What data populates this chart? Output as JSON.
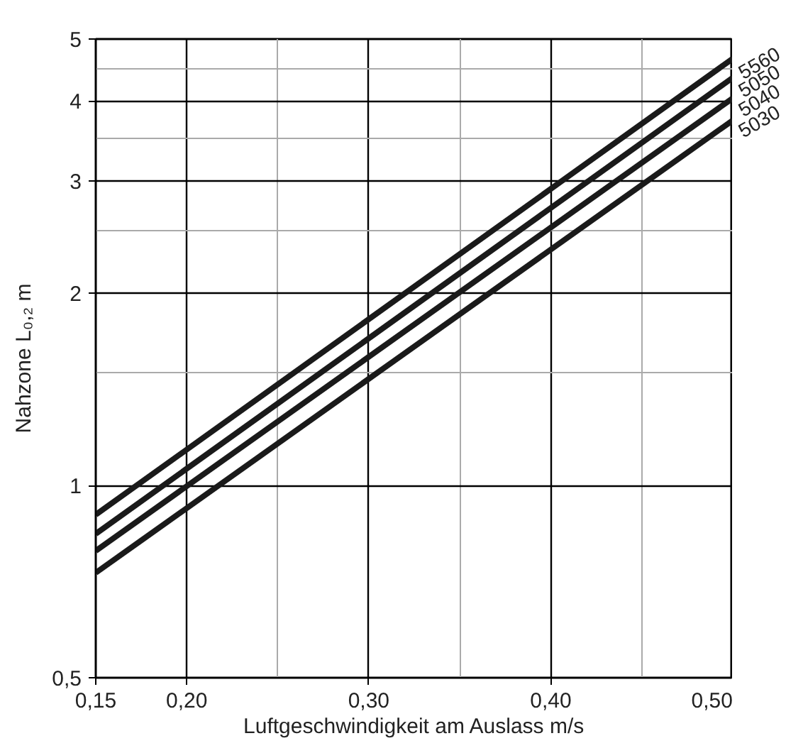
{
  "chart_data": {
    "type": "line",
    "xlabel": "Luftgeschwindigkeit am Auslass m/s",
    "ylabel": "Nahzone L₀,₂ m",
    "x": [
      0.15,
      0.5
    ],
    "series": [
      {
        "name": "5560",
        "color": "#1a1a1a",
        "values": [
          0.9,
          4.66
        ]
      },
      {
        "name": "5050",
        "color": "#1a1a1a",
        "values": [
          0.84,
          4.35
        ]
      },
      {
        "name": "5040",
        "color": "#1a1a1a",
        "values": [
          0.79,
          4.04
        ]
      },
      {
        "name": "5030",
        "color": "#1a1a1a",
        "values": [
          0.73,
          3.73
        ]
      }
    ],
    "log": "y",
    "xlim": [
      0.15,
      0.5
    ],
    "ylim": [
      0.5,
      5
    ],
    "xticks": [
      {
        "value": 0.15,
        "label": "0,15"
      },
      {
        "value": 0.2,
        "label": "0,20"
      },
      {
        "value": 0.25,
        "label": null
      },
      {
        "value": 0.3,
        "label": "0,30"
      },
      {
        "value": 0.35,
        "label": null
      },
      {
        "value": 0.4,
        "label": "0,40"
      },
      {
        "value": 0.45,
        "label": null
      },
      {
        "value": 0.5,
        "label": "0,50"
      }
    ],
    "yticks": [
      {
        "value": 0.5,
        "label": "0,5"
      },
      1,
      {
        "value": 1.5,
        "label": null
      },
      2,
      {
        "value": 2.5,
        "label": null
      },
      3,
      {
        "value": 3.5,
        "label": null
      },
      4,
      {
        "value": 4.5,
        "label": null
      },
      5
    ],
    "grid": true,
    "marker": "none",
    "line_style": "solid"
  }
}
